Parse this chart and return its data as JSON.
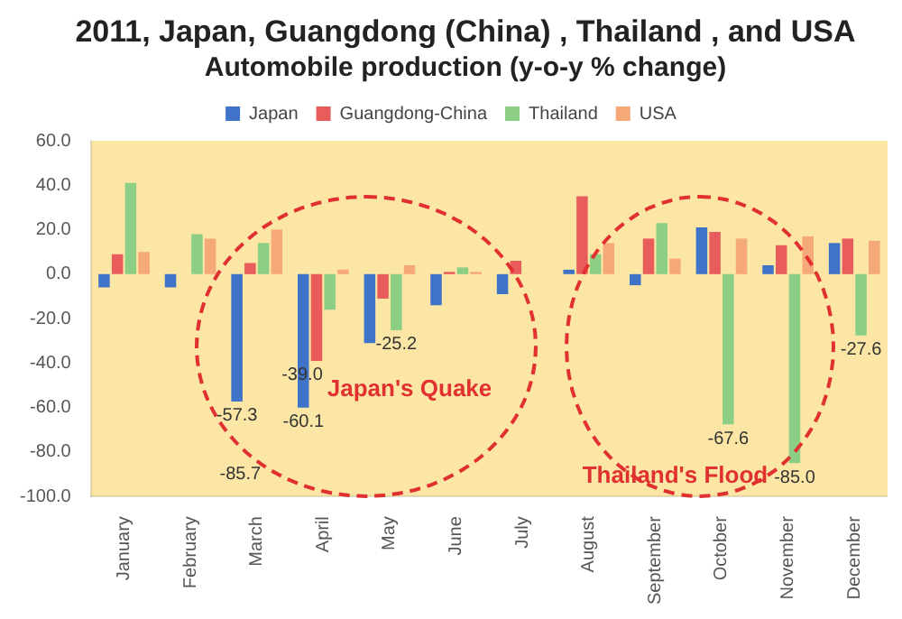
{
  "chart_data": {
    "type": "bar",
    "title": "2011, Japan, Guangdong (China) , Thailand , and USA",
    "subtitle": "Automobile production (y-o-y % change)",
    "categories": [
      "January",
      "February",
      "March",
      "April",
      "May",
      "June",
      "July",
      "August",
      "September",
      "October",
      "November",
      "December"
    ],
    "series": [
      {
        "name": "Japan",
        "color": "#3f73c8",
        "values": [
          -6,
          -6,
          -57.3,
          -60.1,
          -31,
          -14,
          -9,
          2,
          -5,
          21,
          4,
          14
        ],
        "value_labels": [
          null,
          null,
          "-57.3",
          "-60.1",
          null,
          null,
          null,
          null,
          null,
          null,
          null,
          null
        ]
      },
      {
        "name": "Guangdong-China",
        "color": "#e85c5c",
        "values": [
          9,
          null,
          5,
          -39.0,
          -11,
          1,
          6,
          35,
          16,
          19,
          13,
          16
        ],
        "value_labels": [
          null,
          null,
          null,
          "-39.0",
          null,
          null,
          null,
          null,
          null,
          null,
          null,
          null
        ]
      },
      {
        "name": "Thailand",
        "color": "#8ccf84",
        "values": [
          41,
          18,
          14,
          -16,
          -25.2,
          3,
          null,
          9,
          23,
          -67.6,
          -85.0,
          -27.6
        ],
        "value_labels": [
          null,
          null,
          null,
          null,
          "-25.2",
          null,
          null,
          null,
          null,
          "-67.6",
          "-85.0",
          "-27.6"
        ]
      },
      {
        "name": "USA",
        "color": "#f5a878",
        "values": [
          10,
          16,
          20,
          2,
          4,
          1,
          null,
          14,
          7,
          16,
          17,
          15
        ]
      }
    ],
    "ylim": [
      -100,
      60
    ],
    "yticks": [
      {
        "value": -100,
        "label": "-100.0"
      },
      {
        "value": -80,
        "label": "-80.0"
      },
      {
        "value": -60,
        "label": "-60.0"
      },
      {
        "value": -40,
        "label": "-40.0"
      },
      {
        "value": -20,
        "label": "-20.0"
      },
      {
        "value": 0,
        "label": "0.0"
      },
      {
        "value": 20,
        "label": "20.0"
      },
      {
        "value": 40,
        "label": "40.0"
      },
      {
        "value": 60,
        "label": "60.0"
      }
    ],
    "legend": "top",
    "annotations": [
      "-85.7",
      "Japan's Quake",
      "Thailand's Flood"
    ]
  }
}
